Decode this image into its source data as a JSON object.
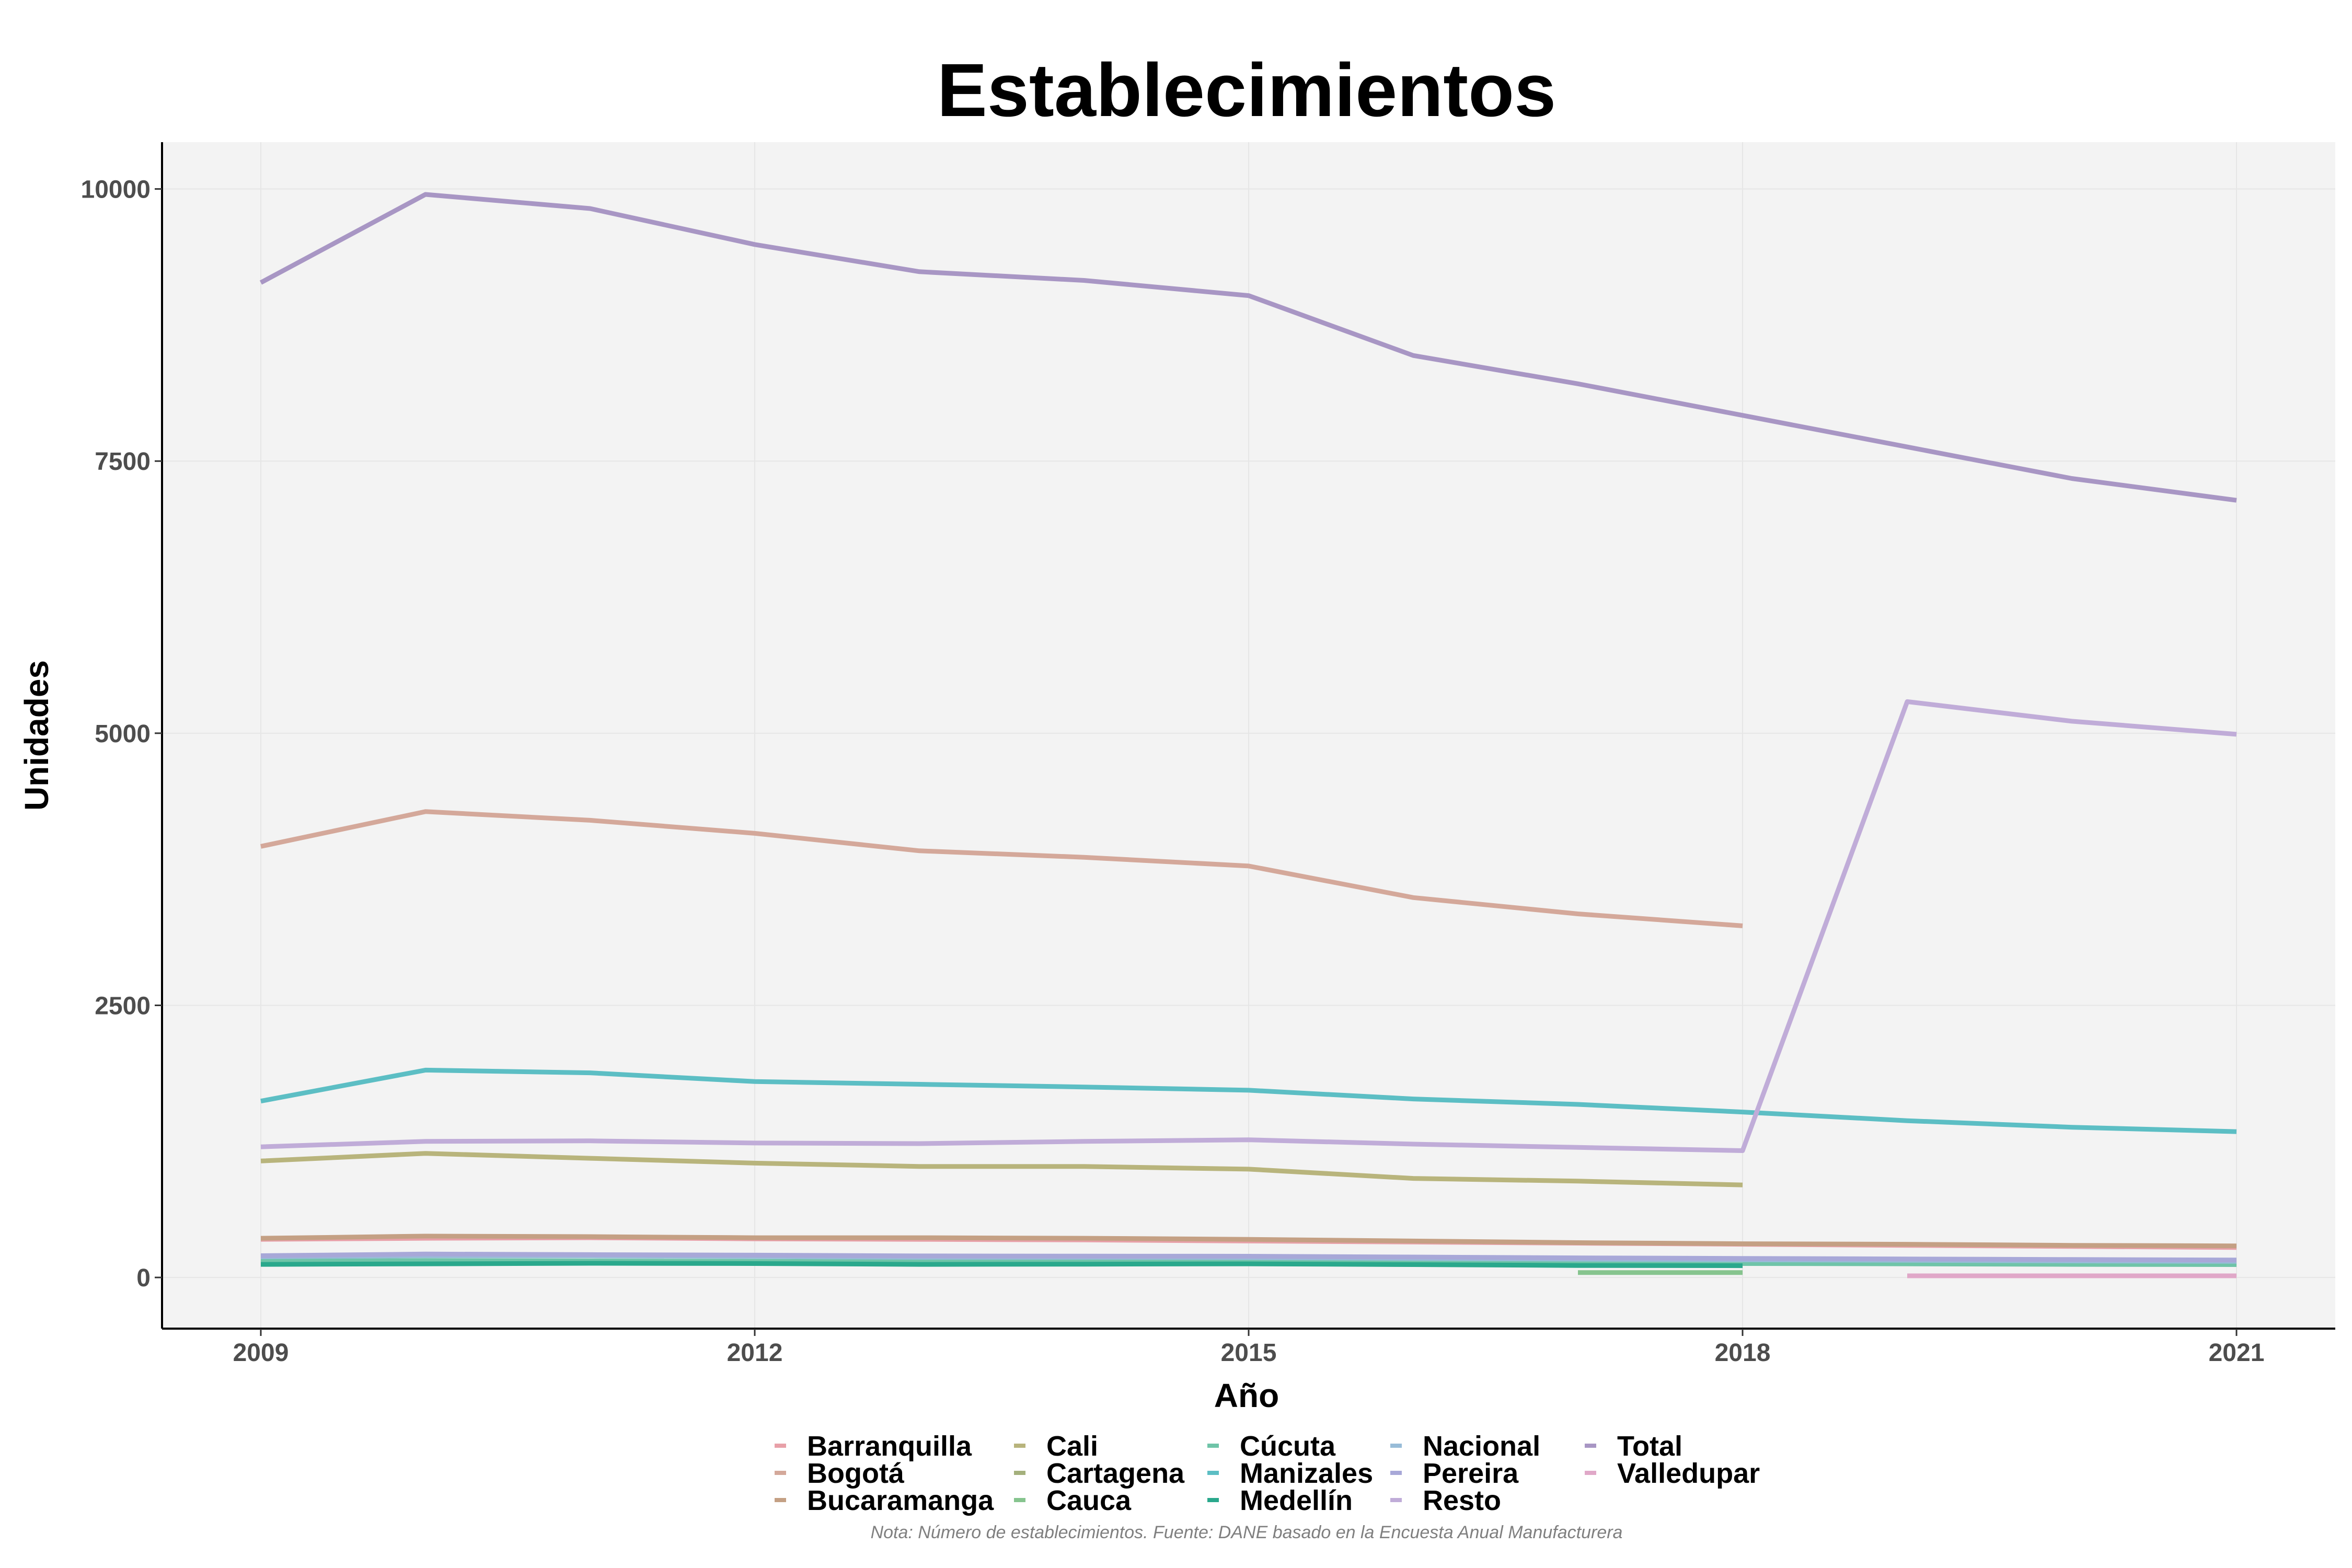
{
  "chart_data": {
    "type": "line",
    "title": "Establecimientos",
    "xlabel": "Año",
    "ylabel": "Unidades",
    "note": "Nota: Número de establecimientos. Fuente: DANE basado en la Encuesta Anual Manufacturera",
    "x_ticks": [
      "2009",
      "2012",
      "2015",
      "2018",
      "2021"
    ],
    "y_ticks": [
      "0",
      "2500",
      "5000",
      "7500",
      "10000"
    ],
    "xlim": [
      2008.4,
      2021.6
    ],
    "ylim": [
      -470,
      10430
    ],
    "grid": true,
    "legend_position": "bottom",
    "series": [
      {
        "name": "Barranquilla",
        "color": "#e8a0a8",
        "points": [
          [
            2009,
            350
          ],
          [
            2010,
            360
          ],
          [
            2011,
            365
          ],
          [
            2012,
            355
          ],
          [
            2013,
            350
          ],
          [
            2014,
            345
          ],
          [
            2015,
            335
          ],
          [
            2016,
            325
          ],
          [
            2017,
            315
          ],
          [
            2018,
            305
          ],
          [
            2019,
            295
          ],
          [
            2020,
            285
          ],
          [
            2021,
            275
          ]
        ]
      },
      {
        "name": "Bogotá",
        "color": "#d4a89a",
        "points": [
          [
            2009,
            3960
          ],
          [
            2010,
            4280
          ],
          [
            2011,
            4200
          ],
          [
            2012,
            4080
          ],
          [
            2013,
            3920
          ],
          [
            2014,
            3860
          ],
          [
            2015,
            3780
          ],
          [
            2016,
            3490
          ],
          [
            2017,
            3340
          ],
          [
            2018,
            3230
          ]
        ]
      },
      {
        "name": "Bucaramanga",
        "color": "#c4a084",
        "points": [
          [
            2009,
            360
          ],
          [
            2010,
            380
          ],
          [
            2011,
            375
          ],
          [
            2012,
            365
          ],
          [
            2013,
            365
          ],
          [
            2014,
            360
          ],
          [
            2015,
            350
          ],
          [
            2016,
            335
          ],
          [
            2017,
            320
          ],
          [
            2018,
            310
          ],
          [
            2019,
            305
          ],
          [
            2020,
            295
          ],
          [
            2021,
            290
          ]
        ]
      },
      {
        "name": "Cali",
        "color": "#b8b47c",
        "points": [
          [
            2009,
            1070
          ],
          [
            2010,
            1140
          ],
          [
            2011,
            1095
          ],
          [
            2012,
            1050
          ],
          [
            2013,
            1020
          ],
          [
            2014,
            1020
          ],
          [
            2015,
            995
          ],
          [
            2016,
            910
          ],
          [
            2017,
            885
          ],
          [
            2018,
            850
          ]
        ]
      },
      {
        "name": "Cartagena",
        "color": "#a4b07c",
        "points": [
          [
            2009,
            130
          ],
          [
            2010,
            135
          ],
          [
            2011,
            140
          ],
          [
            2012,
            138
          ],
          [
            2013,
            132
          ],
          [
            2014,
            130
          ],
          [
            2015,
            128
          ],
          [
            2016,
            125
          ],
          [
            2017,
            120
          ],
          [
            2018,
            118
          ]
        ]
      },
      {
        "name": "Cauca",
        "color": "#86c48e",
        "points": [
          [
            2017,
            45
          ],
          [
            2018,
            45
          ]
        ]
      },
      {
        "name": "Cúcuta",
        "color": "#6fc4a8",
        "points": [
          [
            2009,
            150
          ],
          [
            2010,
            155
          ],
          [
            2011,
            152
          ],
          [
            2012,
            148
          ],
          [
            2013,
            145
          ],
          [
            2014,
            145
          ],
          [
            2015,
            142
          ],
          [
            2016,
            138
          ],
          [
            2017,
            132
          ],
          [
            2018,
            128
          ],
          [
            2019,
            125
          ],
          [
            2020,
            120
          ],
          [
            2021,
            118
          ]
        ]
      },
      {
        "name": "Manizales",
        "color": "#5cbec4",
        "points": [
          [
            2009,
            1620
          ],
          [
            2010,
            1905
          ],
          [
            2011,
            1880
          ],
          [
            2012,
            1800
          ],
          [
            2013,
            1775
          ],
          [
            2014,
            1750
          ],
          [
            2015,
            1720
          ],
          [
            2016,
            1640
          ],
          [
            2017,
            1590
          ],
          [
            2018,
            1520
          ],
          [
            2019,
            1440
          ],
          [
            2020,
            1380
          ],
          [
            2021,
            1340
          ]
        ]
      },
      {
        "name": "Medellín",
        "color": "#2aa88c",
        "points": [
          [
            2009,
            120
          ],
          [
            2010,
            125
          ],
          [
            2011,
            130
          ],
          [
            2012,
            128
          ],
          [
            2013,
            120
          ],
          [
            2014,
            122
          ],
          [
            2015,
            125
          ],
          [
            2016,
            118
          ],
          [
            2017,
            110
          ],
          [
            2018,
            108
          ]
        ]
      },
      {
        "name": "Nacional",
        "color": "#98bcd8",
        "points": [
          [
            2009,
            190
          ],
          [
            2010,
            200
          ],
          [
            2011,
            198
          ],
          [
            2012,
            192
          ],
          [
            2013,
            185
          ],
          [
            2014,
            185
          ],
          [
            2015,
            182
          ],
          [
            2016,
            175
          ],
          [
            2017,
            168
          ],
          [
            2018,
            162
          ],
          [
            2019,
            158
          ],
          [
            2020,
            152
          ],
          [
            2021,
            148
          ]
        ]
      },
      {
        "name": "Pereira",
        "color": "#a8a8d8",
        "points": [
          [
            2009,
            200
          ],
          [
            2010,
            215
          ],
          [
            2011,
            210
          ],
          [
            2012,
            205
          ],
          [
            2013,
            198
          ],
          [
            2014,
            196
          ],
          [
            2015,
            195
          ],
          [
            2016,
            188
          ],
          [
            2017,
            180
          ],
          [
            2018,
            175
          ],
          [
            2019,
            170
          ],
          [
            2020,
            165
          ],
          [
            2021,
            160
          ]
        ]
      },
      {
        "name": "Resto",
        "color": "#c0acd8",
        "points": [
          [
            2009,
            1200
          ],
          [
            2010,
            1250
          ],
          [
            2011,
            1255
          ],
          [
            2012,
            1235
          ],
          [
            2013,
            1230
          ],
          [
            2014,
            1250
          ],
          [
            2015,
            1265
          ],
          [
            2016,
            1225
          ],
          [
            2017,
            1195
          ],
          [
            2018,
            1165
          ],
          [
            2019,
            5290
          ],
          [
            2020,
            5110
          ],
          [
            2021,
            4990
          ]
        ]
      },
      {
        "name": "Total",
        "color": "#a896c4",
        "points": [
          [
            2009,
            9140
          ],
          [
            2010,
            9950
          ],
          [
            2011,
            9820
          ],
          [
            2012,
            9490
          ],
          [
            2013,
            9240
          ],
          [
            2014,
            9160
          ],
          [
            2015,
            9020
          ],
          [
            2016,
            8470
          ],
          [
            2017,
            8210
          ],
          [
            2018,
            7920
          ],
          [
            2019,
            7630
          ],
          [
            2020,
            7340
          ],
          [
            2021,
            7140
          ]
        ]
      },
      {
        "name": "Valledupar",
        "color": "#e0a8c8",
        "points": [
          [
            2019,
            15
          ],
          [
            2020,
            15
          ],
          [
            2021,
            15
          ]
        ]
      }
    ]
  }
}
